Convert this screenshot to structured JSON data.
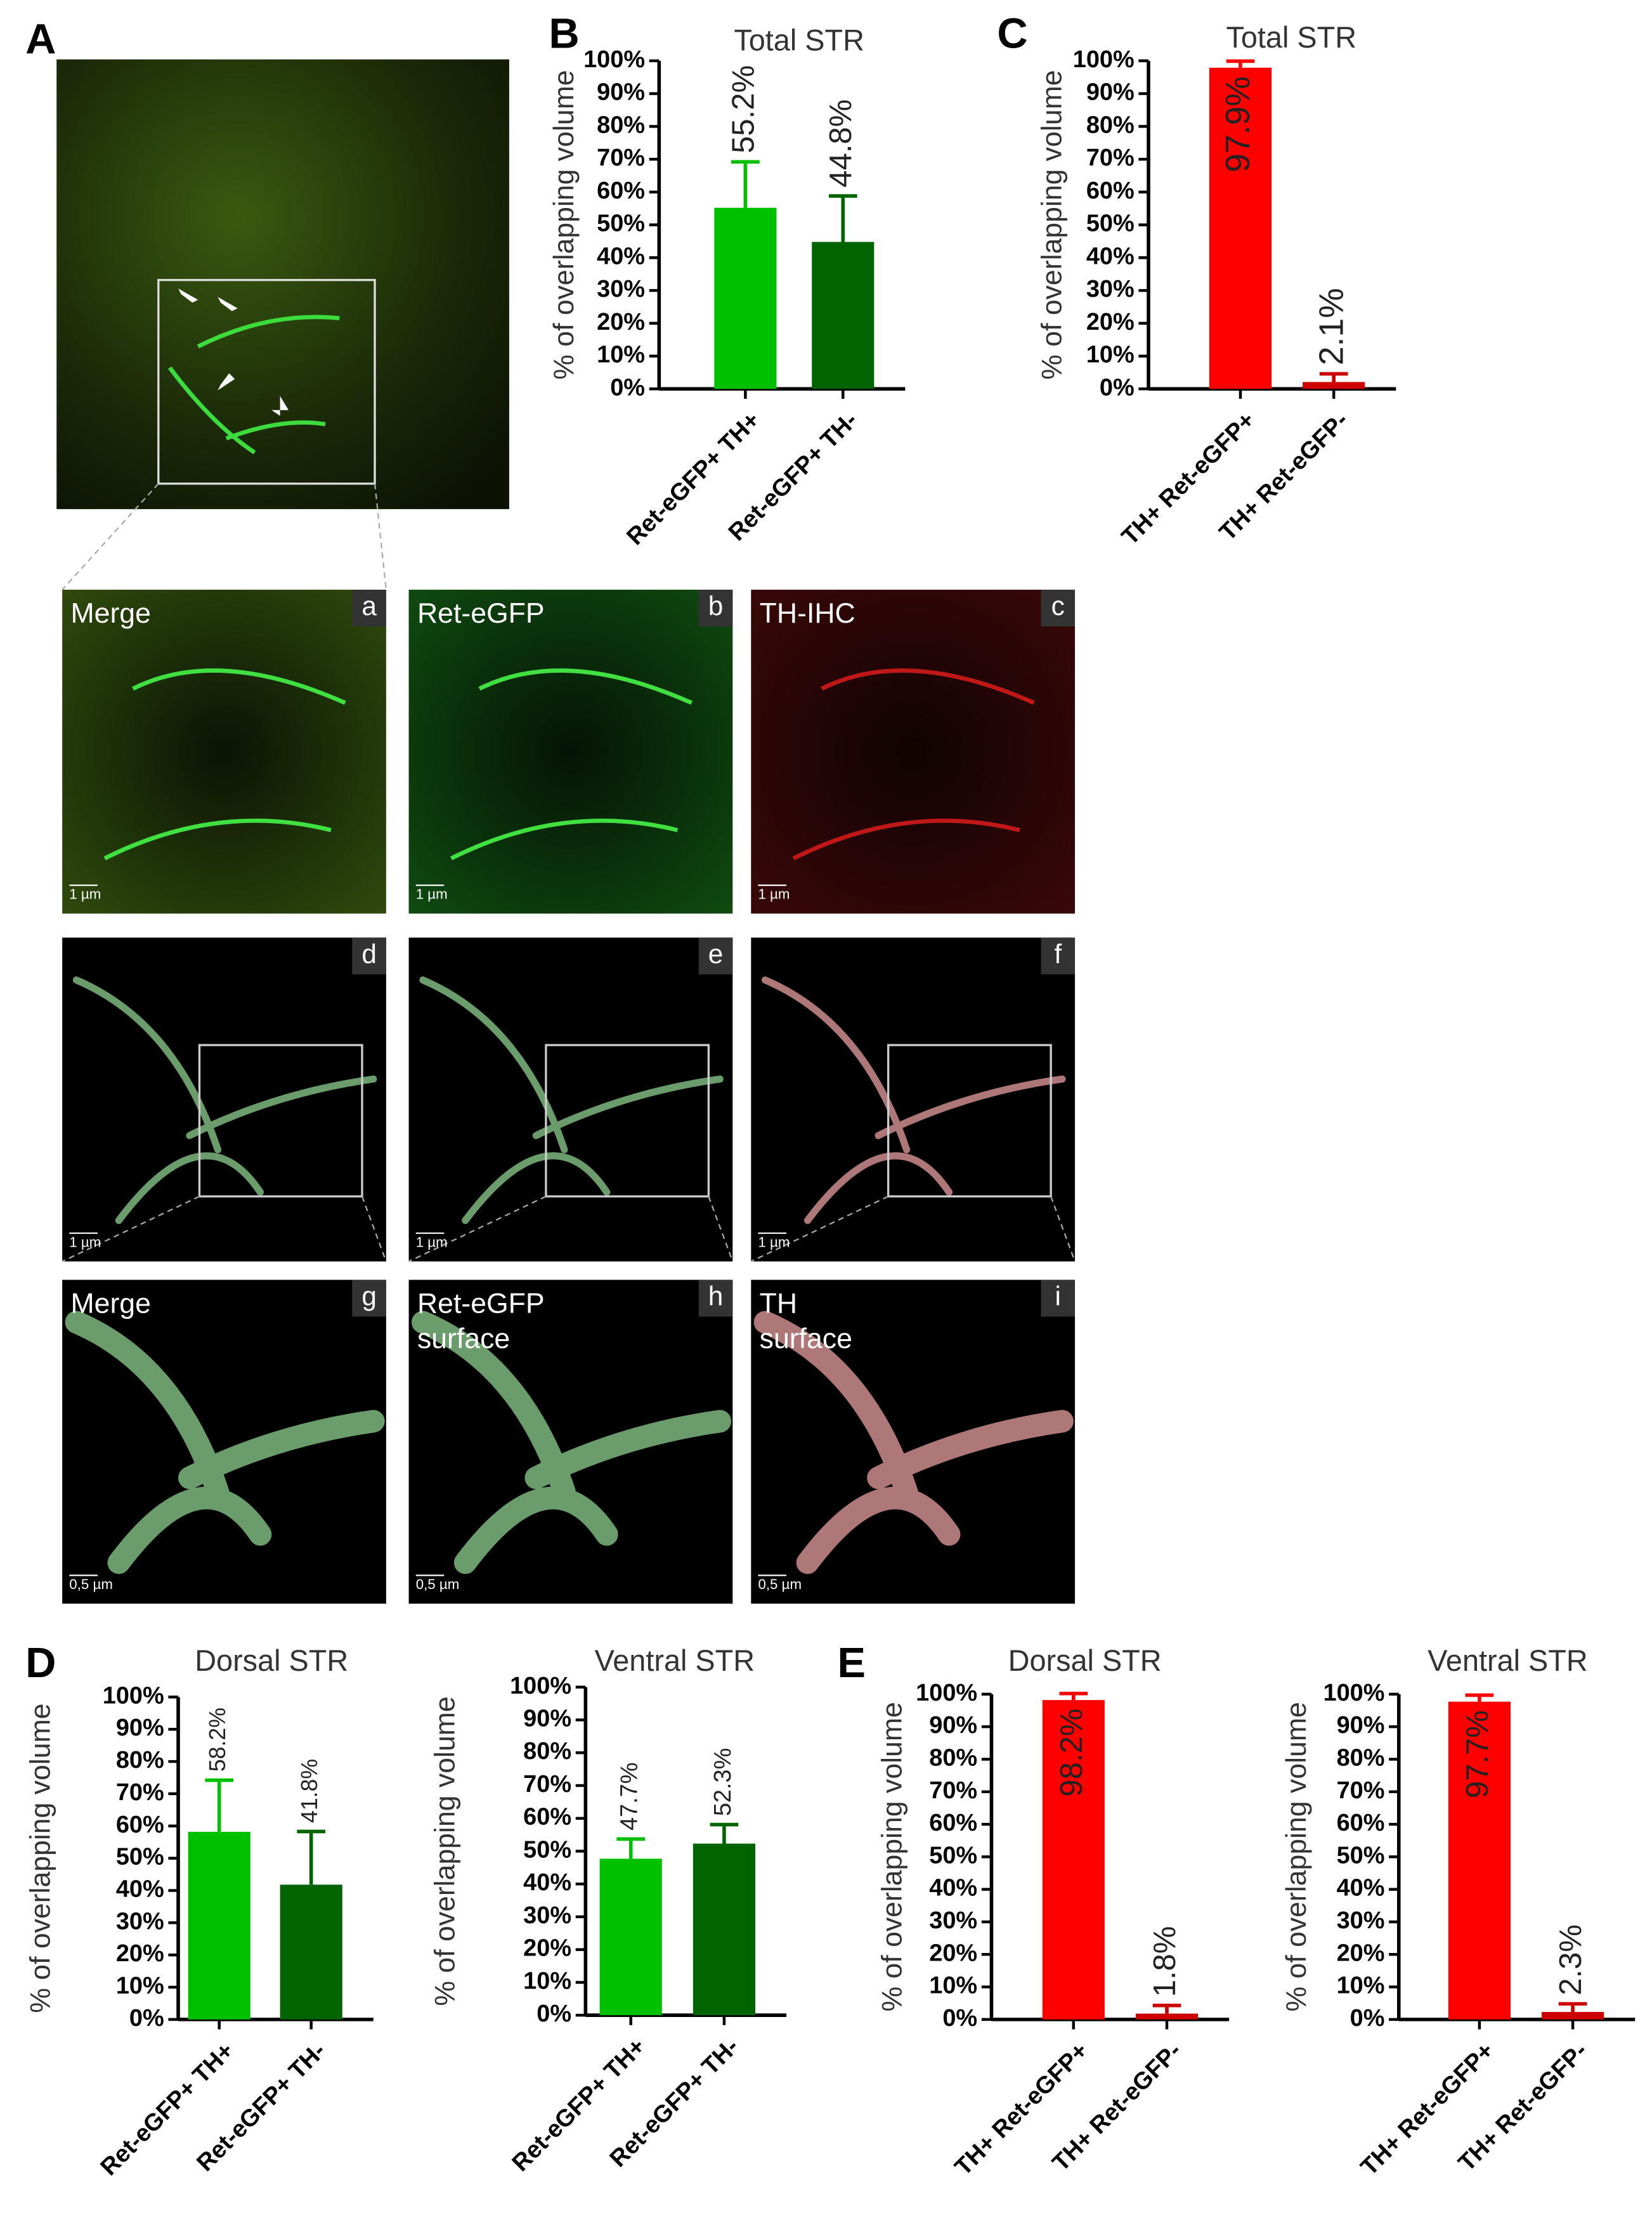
{
  "panel_A": "A",
  "panels": [
    {
      "label": [
        "Merge"
      ],
      "letter": "a",
      "scale": "1 µm"
    },
    {
      "label": [
        "Ret-eGFP"
      ],
      "letter": "b",
      "scale": "1 µm"
    },
    {
      "label": [
        "TH-IHC"
      ],
      "letter": "c",
      "scale": "1 µm"
    },
    {
      "label": [],
      "letter": "d",
      "scale": "1 µm"
    },
    {
      "label": [],
      "letter": "e",
      "scale": "1 µm"
    },
    {
      "label": [],
      "letter": "f",
      "scale": "1 µm"
    },
    {
      "label": [
        "Merge"
      ],
      "letter": "g",
      "scale": "0,5 µm"
    },
    {
      "label": [
        "Ret-eGFP",
        "surface"
      ],
      "letter": "h",
      "scale": "0,5 µm"
    },
    {
      "label": [
        "TH",
        "surface"
      ],
      "letter": "i",
      "scale": "0,5 µm"
    }
  ],
  "chart_data": [
    {
      "type": "bar",
      "panel": "B",
      "title": "Total STR",
      "ylabel": "% of overlapping volume",
      "categories": [
        "Ret-eGFP+ TH+",
        "Ret-eGFP+ TH-"
      ],
      "values": [
        55.2,
        44.8
      ],
      "value_labels": [
        "55.2%",
        "44.8%"
      ],
      "errors": [
        14,
        14
      ],
      "colors": [
        "#00c000",
        "#006400"
      ],
      "ylim": [
        0,
        100
      ],
      "yticks": [
        {
          "value": 0,
          "label": "0%"
        },
        {
          "value": 10,
          "label": "10%"
        },
        {
          "value": 20,
          "label": "20%"
        },
        {
          "value": 30,
          "label": "30%"
        },
        {
          "value": 40,
          "label": "40%"
        },
        {
          "value": 50,
          "label": "50%"
        },
        {
          "value": 60,
          "label": "60%"
        },
        {
          "value": 70,
          "label": "70%"
        },
        {
          "value": 80,
          "label": "80%"
        },
        {
          "value": 90,
          "label": "90%"
        },
        {
          "value": 100,
          "label": "100%"
        }
      ]
    },
    {
      "type": "bar",
      "panel": "C",
      "title": "Total STR",
      "ylabel": "% of overlapping volume",
      "categories": [
        "TH+ Ret-eGFP+",
        "TH+ Ret-eGFP-"
      ],
      "values": [
        97.9,
        2.1
      ],
      "value_labels": [
        "97.9%",
        "2.1%"
      ],
      "errors": [
        2,
        2.5
      ],
      "colors": [
        "#ff0000",
        "#cc0000"
      ],
      "ylim": [
        0,
        100
      ],
      "yticks": [
        {
          "value": 0,
          "label": "0%"
        },
        {
          "value": 10,
          "label": "10%"
        },
        {
          "value": 20,
          "label": "20%"
        },
        {
          "value": 30,
          "label": "30%"
        },
        {
          "value": 40,
          "label": "40%"
        },
        {
          "value": 50,
          "label": "50%"
        },
        {
          "value": 60,
          "label": "60%"
        },
        {
          "value": 70,
          "label": "70%"
        },
        {
          "value": 80,
          "label": "80%"
        },
        {
          "value": 90,
          "label": "90%"
        },
        {
          "value": 100,
          "label": "100%"
        }
      ]
    },
    {
      "type": "bar",
      "panel": "D",
      "title": "Dorsal STR",
      "ylabel": "% of overlapping volume",
      "categories": [
        "Ret-eGFP+ TH+",
        "Ret-eGFP+ TH-"
      ],
      "values": [
        58.2,
        41.8
      ],
      "value_labels": [
        "58.2%",
        "41.8%"
      ],
      "errors": [
        16,
        16.5
      ],
      "colors": [
        "#00c000",
        "#006400"
      ],
      "ylim": [
        0,
        100
      ],
      "yticks": [
        {
          "value": 0,
          "label": "0%"
        },
        {
          "value": 10,
          "label": "10%"
        },
        {
          "value": 20,
          "label": "20%"
        },
        {
          "value": 30,
          "label": "30%"
        },
        {
          "value": 40,
          "label": "40%"
        },
        {
          "value": 50,
          "label": "50%"
        },
        {
          "value": 60,
          "label": "60%"
        },
        {
          "value": 70,
          "label": "70%"
        },
        {
          "value": 80,
          "label": "80%"
        },
        {
          "value": 90,
          "label": "90%"
        },
        {
          "value": 100,
          "label": "100%"
        }
      ]
    },
    {
      "type": "bar",
      "title": "Ventral STR",
      "ylabel": "% of overlapping volume",
      "categories": [
        "Ret-eGFP+ TH+",
        "Ret-eGFP+ TH-"
      ],
      "values": [
        47.7,
        52.3
      ],
      "value_labels": [
        "47.7%",
        "52.3%"
      ],
      "errors": [
        6,
        5.8
      ],
      "colors": [
        "#00c000",
        "#006400"
      ],
      "ylim": [
        0,
        100
      ],
      "yticks": [
        {
          "value": 0,
          "label": "0%"
        },
        {
          "value": 10,
          "label": "10%"
        },
        {
          "value": 20,
          "label": "20%"
        },
        {
          "value": 30,
          "label": "30%"
        },
        {
          "value": 40,
          "label": "40%"
        },
        {
          "value": 50,
          "label": "50%"
        },
        {
          "value": 60,
          "label": "60%"
        },
        {
          "value": 70,
          "label": "70%"
        },
        {
          "value": 80,
          "label": "80%"
        },
        {
          "value": 90,
          "label": "90%"
        },
        {
          "value": 100,
          "label": "100%"
        }
      ]
    },
    {
      "type": "bar",
      "panel": "E",
      "title": "Dorsal STR",
      "ylabel": "% of overlapping volume",
      "categories": [
        "TH+ Ret-eGFP+",
        "TH+ Ret-eGFP-"
      ],
      "values": [
        98.2,
        1.8
      ],
      "value_labels": [
        "98.2%",
        "1.8%"
      ],
      "errors": [
        2,
        2.5
      ],
      "colors": [
        "#ff0000",
        "#cc0000"
      ],
      "ylim": [
        0,
        100
      ],
      "yticks": [
        {
          "value": 0,
          "label": "0%"
        },
        {
          "value": 10,
          "label": "10%"
        },
        {
          "value": 20,
          "label": "20%"
        },
        {
          "value": 30,
          "label": "30%"
        },
        {
          "value": 40,
          "label": "40%"
        },
        {
          "value": 50,
          "label": "50%"
        },
        {
          "value": 60,
          "label": "60%"
        },
        {
          "value": 70,
          "label": "70%"
        },
        {
          "value": 80,
          "label": "80%"
        },
        {
          "value": 90,
          "label": "90%"
        },
        {
          "value": 100,
          "label": "100%"
        }
      ]
    },
    {
      "type": "bar",
      "title": "Ventral STR",
      "ylabel": "% of overlapping volume",
      "categories": [
        "TH+ Ret-eGFP+",
        "TH+ Ret-eGFP-"
      ],
      "values": [
        97.7,
        2.3
      ],
      "value_labels": [
        "97.7%",
        "2.3%"
      ],
      "errors": [
        2,
        2.5
      ],
      "colors": [
        "#ff0000",
        "#cc0000"
      ],
      "ylim": [
        0,
        100
      ],
      "yticks": [
        {
          "value": 0,
          "label": "0%"
        },
        {
          "value": 10,
          "label": "10%"
        },
        {
          "value": 20,
          "label": "20%"
        },
        {
          "value": 30,
          "label": "30%"
        },
        {
          "value": 40,
          "label": "40%"
        },
        {
          "value": 50,
          "label": "50%"
        },
        {
          "value": 60,
          "label": "60%"
        },
        {
          "value": 70,
          "label": "70%"
        },
        {
          "value": 80,
          "label": "80%"
        },
        {
          "value": 90,
          "label": "90%"
        },
        {
          "value": 100,
          "label": "100%"
        }
      ]
    }
  ]
}
